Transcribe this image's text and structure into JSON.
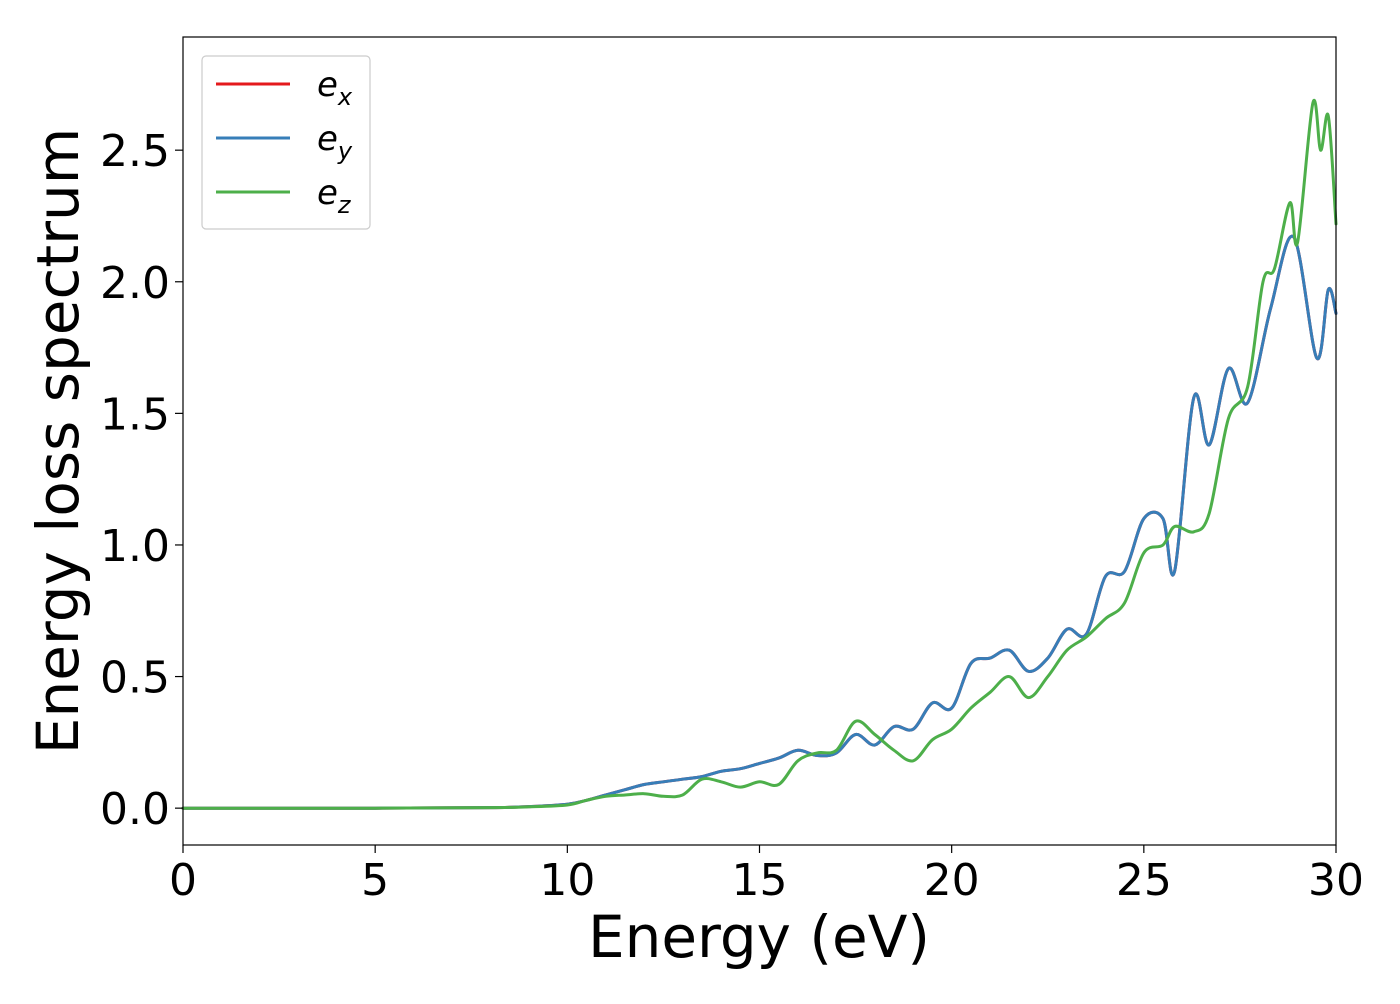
{
  "chart_data": {
    "type": "line",
    "title": "",
    "xlabel": "Energy (eV)",
    "ylabel": "Energy loss spectrum",
    "xlim": [
      0,
      30
    ],
    "ylim": [
      -0.14,
      2.93
    ],
    "x_ticks": [
      0,
      5,
      10,
      15,
      20,
      25,
      30
    ],
    "x_tick_labels": [
      "0",
      "5",
      "10",
      "15",
      "20",
      "25",
      "30"
    ],
    "y_ticks": [
      0.0,
      0.5,
      1.0,
      1.5,
      2.0,
      2.5
    ],
    "y_tick_labels": [
      "0.0",
      "0.5",
      "1.0",
      "1.5",
      "2.0",
      "2.5"
    ],
    "grid": false,
    "legend": {
      "position": "upper-left",
      "entries": [
        {
          "base": "e",
          "sub": "x",
          "color": "#e41a1c"
        },
        {
          "base": "e",
          "sub": "y",
          "color": "#377eb8"
        },
        {
          "base": "e",
          "sub": "z",
          "color": "#4daf4a"
        }
      ]
    },
    "series": [
      {
        "name": "e_x",
        "color": "#e41a1c",
        "points": [
          [
            0,
            0.0
          ],
          [
            5,
            0.0
          ],
          [
            8,
            0.002
          ],
          [
            9,
            0.006
          ],
          [
            10,
            0.015
          ],
          [
            10.5,
            0.03
          ],
          [
            11,
            0.05
          ],
          [
            11.5,
            0.07
          ],
          [
            12,
            0.09
          ],
          [
            12.5,
            0.1
          ],
          [
            13,
            0.11
          ],
          [
            13.5,
            0.12
          ],
          [
            14,
            0.14
          ],
          [
            14.5,
            0.15
          ],
          [
            15,
            0.17
          ],
          [
            15.5,
            0.19
          ],
          [
            16,
            0.22
          ],
          [
            16.5,
            0.2
          ],
          [
            17,
            0.21
          ],
          [
            17.5,
            0.28
          ],
          [
            18,
            0.24
          ],
          [
            18.5,
            0.31
          ],
          [
            19,
            0.3
          ],
          [
            19.5,
            0.4
          ],
          [
            20,
            0.38
          ],
          [
            20.5,
            0.55
          ],
          [
            21,
            0.57
          ],
          [
            21.5,
            0.6
          ],
          [
            22,
            0.52
          ],
          [
            22.5,
            0.57
          ],
          [
            23,
            0.68
          ],
          [
            23.5,
            0.66
          ],
          [
            24,
            0.88
          ],
          [
            24.5,
            0.9
          ],
          [
            25,
            1.1
          ],
          [
            25.5,
            1.1
          ],
          [
            25.8,
            0.9
          ],
          [
            26.3,
            1.56
          ],
          [
            26.7,
            1.38
          ],
          [
            27.2,
            1.67
          ],
          [
            27.7,
            1.54
          ],
          [
            28.3,
            1.9
          ],
          [
            28.9,
            2.17
          ],
          [
            29.5,
            1.71
          ],
          [
            29.8,
            1.97
          ],
          [
            30,
            1.88
          ]
        ]
      },
      {
        "name": "e_y",
        "color": "#377eb8",
        "points": [
          [
            0,
            0.0
          ],
          [
            5,
            0.0
          ],
          [
            8,
            0.002
          ],
          [
            9,
            0.006
          ],
          [
            10,
            0.015
          ],
          [
            10.5,
            0.03
          ],
          [
            11,
            0.05
          ],
          [
            11.5,
            0.07
          ],
          [
            12,
            0.09
          ],
          [
            12.5,
            0.1
          ],
          [
            13,
            0.11
          ],
          [
            13.5,
            0.12
          ],
          [
            14,
            0.14
          ],
          [
            14.5,
            0.15
          ],
          [
            15,
            0.17
          ],
          [
            15.5,
            0.19
          ],
          [
            16,
            0.22
          ],
          [
            16.5,
            0.2
          ],
          [
            17,
            0.21
          ],
          [
            17.5,
            0.28
          ],
          [
            18,
            0.24
          ],
          [
            18.5,
            0.31
          ],
          [
            19,
            0.3
          ],
          [
            19.5,
            0.4
          ],
          [
            20,
            0.38
          ],
          [
            20.5,
            0.55
          ],
          [
            21,
            0.57
          ],
          [
            21.5,
            0.6
          ],
          [
            22,
            0.52
          ],
          [
            22.5,
            0.57
          ],
          [
            23,
            0.68
          ],
          [
            23.5,
            0.66
          ],
          [
            24,
            0.88
          ],
          [
            24.5,
            0.9
          ],
          [
            25,
            1.1
          ],
          [
            25.5,
            1.1
          ],
          [
            25.8,
            0.9
          ],
          [
            26.3,
            1.56
          ],
          [
            26.7,
            1.38
          ],
          [
            27.2,
            1.67
          ],
          [
            27.7,
            1.54
          ],
          [
            28.3,
            1.9
          ],
          [
            28.9,
            2.17
          ],
          [
            29.5,
            1.71
          ],
          [
            29.8,
            1.97
          ],
          [
            30,
            1.88
          ]
        ]
      },
      {
        "name": "e_z",
        "color": "#4daf4a",
        "points": [
          [
            0,
            0.0
          ],
          [
            5,
            0.0
          ],
          [
            8,
            0.002
          ],
          [
            9,
            0.005
          ],
          [
            10,
            0.012
          ],
          [
            10.5,
            0.03
          ],
          [
            11,
            0.045
          ],
          [
            11.5,
            0.05
          ],
          [
            12,
            0.055
          ],
          [
            12.5,
            0.045
          ],
          [
            13,
            0.05
          ],
          [
            13.5,
            0.11
          ],
          [
            14,
            0.1
          ],
          [
            14.5,
            0.08
          ],
          [
            15,
            0.1
          ],
          [
            15.5,
            0.09
          ],
          [
            16,
            0.18
          ],
          [
            16.5,
            0.21
          ],
          [
            17,
            0.22
          ],
          [
            17.5,
            0.33
          ],
          [
            18,
            0.28
          ],
          [
            18.5,
            0.22
          ],
          [
            19,
            0.18
          ],
          [
            19.5,
            0.26
          ],
          [
            20,
            0.3
          ],
          [
            20.5,
            0.38
          ],
          [
            21,
            0.44
          ],
          [
            21.5,
            0.5
          ],
          [
            22,
            0.42
          ],
          [
            22.5,
            0.5
          ],
          [
            23,
            0.6
          ],
          [
            23.5,
            0.65
          ],
          [
            24,
            0.72
          ],
          [
            24.5,
            0.78
          ],
          [
            25,
            0.97
          ],
          [
            25.5,
            1.0
          ],
          [
            25.8,
            1.07
          ],
          [
            26.3,
            1.05
          ],
          [
            26.7,
            1.12
          ],
          [
            27.2,
            1.48
          ],
          [
            27.7,
            1.6
          ],
          [
            28.1,
            2.0
          ],
          [
            28.4,
            2.05
          ],
          [
            28.8,
            2.3
          ],
          [
            29.0,
            2.15
          ],
          [
            29.4,
            2.68
          ],
          [
            29.6,
            2.5
          ],
          [
            29.8,
            2.63
          ],
          [
            30,
            2.22
          ]
        ]
      }
    ]
  }
}
